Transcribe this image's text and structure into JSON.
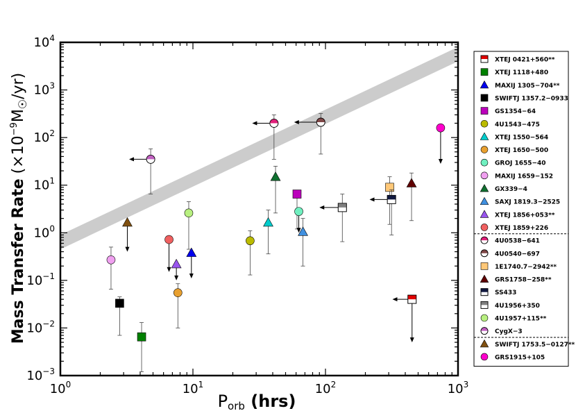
{
  "chart_data": {
    "type": "scatter",
    "title": "",
    "xlabel": {
      "base": "P",
      "sub": "orb",
      "rest": " (hrs)"
    },
    "ylabel": {
      "bold": "Mass Transfer Rate",
      "rest": " (×10",
      "exp": "−9",
      "unit_mid": "M",
      "unit_end": "/yr)"
    },
    "xscale": "log",
    "yscale": "log",
    "xlim": [
      1,
      1000
    ],
    "ylim": [
      0.001,
      10000
    ],
    "x_ticks": [
      {
        "v": 1,
        "exp": "0"
      },
      {
        "v": 10,
        "exp": "1"
      },
      {
        "v": 100,
        "exp": "2"
      },
      {
        "v": 1000,
        "exp": "3"
      }
    ],
    "y_ticks": [
      {
        "v": 0.001,
        "exp": "−3"
      },
      {
        "v": 0.01,
        "exp": "−2"
      },
      {
        "v": 0.1,
        "exp": "−1"
      },
      {
        "v": 1,
        "exp": "0"
      },
      {
        "v": 10,
        "exp": "1"
      },
      {
        "v": 100,
        "exp": "2"
      },
      {
        "v": 1000,
        "exp": "3"
      },
      {
        "v": 10000,
        "exp": "4"
      }
    ],
    "tick_base": "10",
    "band": {
      "x": [
        1,
        1000
      ],
      "y_low": [
        0.45,
        4000
      ],
      "y_high": [
        0.9,
        8000
      ],
      "color": "#cccccc"
    },
    "series": [
      {
        "name": "XTEJ 0421+560**",
        "marker": "square",
        "color": "#e00000",
        "half": true,
        "x": 450,
        "y": 0.04,
        "lim": "left",
        "lim_to": 320,
        "lim2": "down",
        "lim2_to": 0.005
      },
      {
        "name": "XTEJ 1118+480",
        "marker": "square",
        "color": "#008000",
        "x": 4.1,
        "y": 0.0065,
        "yerr": [
          0.0012,
          0.013
        ]
      },
      {
        "name": "MAXIJ 1305−704**",
        "marker": "triangle",
        "color": "#0000ee",
        "x": 9.74,
        "y": 0.38,
        "lim": "down",
        "lim_to": 0.11
      },
      {
        "name": "SWIFTJ 1357.2−0933",
        "marker": "square",
        "color": "#000000",
        "x": 2.8,
        "y": 0.033,
        "yerr": [
          0.007,
          0.045
        ]
      },
      {
        "name": "GS1354−64",
        "marker": "square",
        "color": "#bb00bb",
        "x": 61,
        "y": 6.5,
        "yerr": [
          1.2,
          6.8
        ]
      },
      {
        "name": "4U1543−475",
        "marker": "circle",
        "color": "#bbbb00",
        "x": 27,
        "y": 0.68,
        "yerr": [
          0.13,
          1.1
        ]
      },
      {
        "name": "XTEJ 1550−564",
        "marker": "triangle",
        "color": "#00cccc",
        "x": 37,
        "y": 1.65,
        "yerr": [
          0.36,
          3.0
        ]
      },
      {
        "name": "XTEJ 1650−500",
        "marker": "circle",
        "color": "#e8a030",
        "x": 7.7,
        "y": 0.055,
        "yerr": [
          0.01,
          0.085
        ]
      },
      {
        "name": "GROJ 1655−40",
        "marker": "circle",
        "color": "#70f0c0",
        "x": 62.9,
        "y": 2.8,
        "lim": "down",
        "lim_to": 1.0
      },
      {
        "name": "MAXIJ 1659−152",
        "marker": "circle",
        "color": "#f0a0f0",
        "x": 2.41,
        "y": 0.27,
        "yerr": [
          0.065,
          0.5
        ]
      },
      {
        "name": "GX339−4",
        "marker": "triangle",
        "color": "#107030",
        "x": 42,
        "y": 15,
        "yerr": [
          2.6,
          25
        ]
      },
      {
        "name": "SAXJ 1819.3−2525",
        "marker": "triangle",
        "color": "#4090e0",
        "x": 67.6,
        "y": 1.05,
        "yerr": [
          0.2,
          2.0
        ]
      },
      {
        "name": "XTEJ 1856+053**",
        "marker": "triangle",
        "color": "#9955ee",
        "x": 7.5,
        "y": 0.22,
        "lim": "down",
        "lim_to": 0.1
      },
      {
        "name": "XTEJ 1859+226",
        "marker": "circle",
        "color": "#f06060",
        "x": 6.6,
        "y": 0.72,
        "lim": "down",
        "lim_to": 0.15
      },
      {
        "name": "4U0538−641",
        "marker": "circle",
        "color": "#e0207a",
        "half": true,
        "x": 40.9,
        "y": 200,
        "lim": "left",
        "lim_to": 28,
        "yerr": [
          35,
          300
        ]
      },
      {
        "name": "4U0540−697",
        "marker": "circle",
        "color": "#804848",
        "half": true,
        "x": 92.2,
        "y": 210,
        "lim": "left",
        "lim_to": 58,
        "yerr": [
          45,
          320
        ]
      },
      {
        "name": "1E1740.7−2942**",
        "marker": "square",
        "color": "#ffc878",
        "x": 305,
        "y": 9,
        "yerr": [
          1.5,
          15
        ]
      },
      {
        "name": "GRS1758−258**",
        "marker": "triangle",
        "color": "#600000",
        "x": 446,
        "y": 11,
        "yerr": [
          1.8,
          18
        ]
      },
      {
        "name": "SS433",
        "marker": "square",
        "color": "#101840",
        "half": true,
        "x": 315,
        "y": 5,
        "lim": "left",
        "lim_to": 215,
        "yerr": [
          0.9,
          8
        ]
      },
      {
        "name": "4U1956+350",
        "marker": "square",
        "color": "#808080",
        "half": true,
        "x": 134,
        "y": 3.4,
        "lim": "left",
        "lim_to": 90,
        "yerr": [
          0.65,
          6.5
        ]
      },
      {
        "name": "4U1957+115**",
        "marker": "circle",
        "color": "#b8f080",
        "x": 9.3,
        "y": 2.6,
        "yerr": [
          0.45,
          4.5
        ]
      },
      {
        "name": "CygX−3",
        "marker": "circle",
        "color": "#c060c0",
        "half": true,
        "x": 4.8,
        "y": 35,
        "lim": "left",
        "lim_to": 3.3,
        "yerr": [
          6.5,
          58
        ]
      },
      {
        "name": "SWIFTJ 1753.5−0127**",
        "marker": "triangle",
        "color": "#805010",
        "x": 3.2,
        "y": 1.65,
        "lim": "down",
        "lim_to": 0.4
      },
      {
        "name": "GRS1915+105",
        "marker": "circle",
        "color": "#ff00cc",
        "x": 739,
        "y": 160,
        "lim": "down",
        "lim_to": 28
      }
    ],
    "legend": {
      "position": "right",
      "separators_after": [
        13,
        21
      ]
    }
  }
}
